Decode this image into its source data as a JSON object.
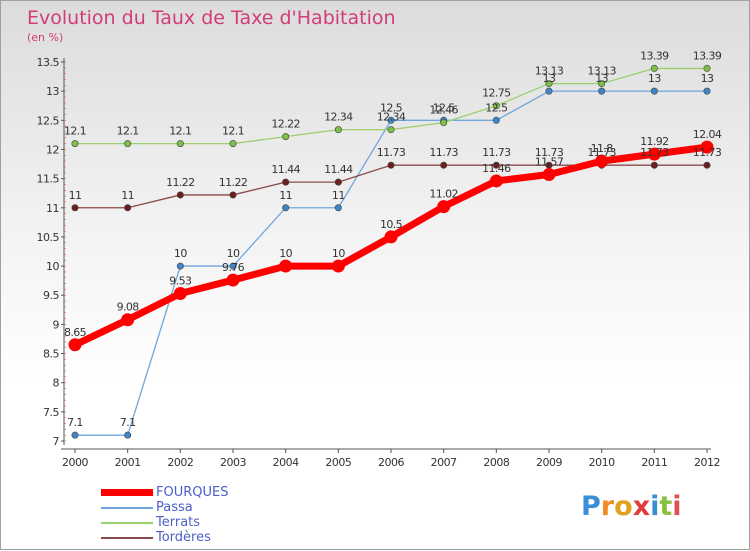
{
  "header": {
    "title": "Evolution du Taux de Taxe d'Habitation",
    "unit": "(en %)"
  },
  "logo": {
    "text": "Proxiti",
    "letters": [
      {
        "ch": "P",
        "color": "#3b8fd6"
      },
      {
        "ch": "r",
        "color": "#f08a24"
      },
      {
        "ch": "o",
        "color": "#e0a020"
      },
      {
        "ch": "x",
        "color": "#e03c3c"
      },
      {
        "ch": "i",
        "color": "#3a8fd0"
      },
      {
        "ch": "t",
        "color": "#8ac040"
      },
      {
        "ch": "i",
        "color": "#e05050"
      }
    ]
  },
  "chart_data": {
    "type": "line",
    "title": "Evolution du Taux de Taxe d'Habitation",
    "ylabel": "(en %)",
    "xlabel": "",
    "x": [
      2000,
      2001,
      2002,
      2003,
      2004,
      2005,
      2006,
      2007,
      2008,
      2009,
      2010,
      2011,
      2012
    ],
    "ylim": [
      7,
      13.5
    ],
    "yticks": [
      7,
      7.5,
      8,
      8.5,
      9,
      9.5,
      10,
      10.5,
      11,
      11.5,
      12,
      12.5,
      13,
      13.5
    ],
    "grid": false,
    "legend_position": "bottom-left",
    "series": [
      {
        "name": "Passa",
        "color": "#6fa6dd",
        "marker": "#3f86c8",
        "values": [
          7.1,
          7.1,
          10,
          10,
          11,
          11,
          12.5,
          12.5,
          12.5,
          13,
          13,
          13,
          13
        ],
        "labels": [
          "7.1",
          "7.1",
          "10",
          "10",
          "11",
          "11",
          "12.5",
          "12.5",
          "12.5",
          "13",
          "13",
          "13",
          "13"
        ]
      },
      {
        "name": "Terrats",
        "color": "#9ad070",
        "marker": "#7cc04a",
        "values": [
          12.1,
          12.1,
          12.1,
          12.1,
          12.22,
          12.34,
          12.34,
          12.46,
          12.75,
          13.13,
          13.13,
          13.39,
          13.39
        ],
        "labels": [
          "12.1",
          "12.1",
          "12.1",
          "12.1",
          "12.22",
          "12.34",
          "12.34",
          "12.46",
          "12.75",
          "13.13",
          "13.13",
          "13.39",
          "13.39"
        ]
      },
      {
        "name": "Tordères",
        "color": "#8a4a4a",
        "marker": "#6a2020",
        "values": [
          11,
          11,
          11.22,
          11.22,
          11.44,
          11.44,
          11.73,
          11.73,
          11.73,
          11.73,
          11.73,
          11.73,
          11.73
        ],
        "labels": [
          "11",
          "11",
          "11.22",
          "11.22",
          "11.44",
          "11.44",
          "11.73",
          "11.73",
          "11.73",
          "11.73",
          "11.73",
          "11.73",
          "11.73"
        ]
      },
      {
        "name": "FOURQUES",
        "color": "#ff0000",
        "marker": "#ff0000",
        "values": [
          8.65,
          9.08,
          9.53,
          9.76,
          10,
          10,
          10.5,
          11.02,
          11.46,
          11.57,
          11.8,
          11.92,
          12.04
        ],
        "labels": [
          "8.65",
          "9.08",
          "9.53",
          "9.76",
          "10",
          "10",
          "10.5",
          "11.02",
          "11.46",
          "11.57",
          "11.8",
          "11.92",
          "12.04"
        ]
      }
    ],
    "legend_order": [
      "FOURQUES",
      "Passa",
      "Terrats",
      "Tordères"
    ]
  }
}
